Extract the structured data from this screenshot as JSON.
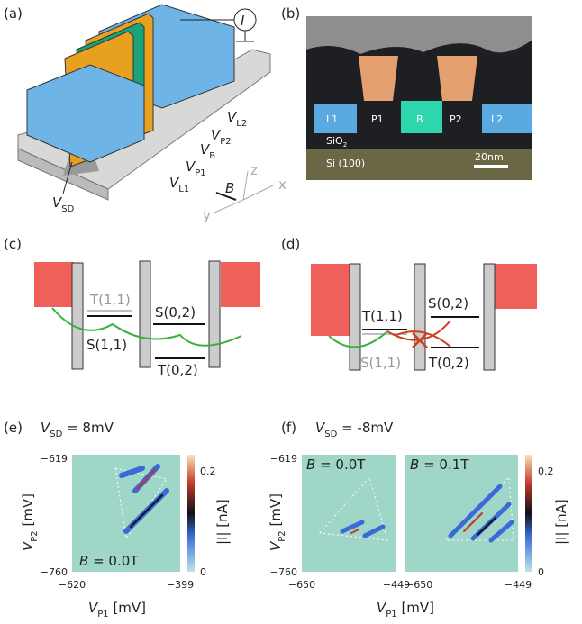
{
  "panel_a": {
    "label": "(a)",
    "current": "I",
    "gates": [
      {
        "symbol": "V",
        "sub": "L2"
      },
      {
        "symbol": "V",
        "sub": "P2"
      },
      {
        "symbol": "V",
        "sub": "B"
      },
      {
        "symbol": "V",
        "sub": "P1"
      },
      {
        "symbol": "V",
        "sub": "L1"
      }
    ],
    "source": {
      "symbol": "V",
      "sub": "SD"
    },
    "field": "B",
    "axes": [
      "z",
      "x",
      "y"
    ]
  },
  "panel_b": {
    "label": "(b)",
    "regions": [
      "L1",
      "P1",
      "B",
      "P2",
      "L2"
    ],
    "oxide": {
      "text": "SiO",
      "sub": "2"
    },
    "substrate": "Si (100)",
    "scale_bar": "20nm"
  },
  "panel_c": {
    "label": "(c)",
    "states": [
      "T(1,1)",
      "S(0,2)",
      "S(1,1)",
      "T(0,2)"
    ]
  },
  "panel_d": {
    "label": "(d)",
    "states": [
      "T(1,1)",
      "S(0,2)",
      "S(1,1)",
      "T(0,2)"
    ]
  },
  "panel_e": {
    "label": "(e)",
    "title": {
      "symbol": "V",
      "sub": "SD",
      "text": " = 8mV"
    },
    "y_label": {
      "symbol": "V",
      "sub": "P2",
      "unit": " [mV]"
    },
    "x_label": {
      "symbol": "V",
      "sub": "P1",
      "unit": " [mV]"
    },
    "yticks": [
      "−619",
      "−760"
    ],
    "xticks": [
      "−620",
      "−399"
    ],
    "field": {
      "symbol": "B",
      "text": " = 0.0T"
    },
    "colorbar": {
      "ticks": [
        "0.2",
        "0"
      ],
      "label": "|I| [nA]"
    }
  },
  "panel_f": {
    "label": "(f)",
    "title": {
      "symbol": "V",
      "sub": "SD",
      "text": " = -8mV"
    },
    "y_label": {
      "symbol": "V",
      "sub": "P2",
      "unit": " [mV]"
    },
    "x_label": {
      "symbol": "V",
      "sub": "P1",
      "unit": " [mV]"
    },
    "yticks": [
      "−619",
      "−760"
    ],
    "maps": [
      {
        "field": {
          "symbol": "B",
          "text": " = 0.0T"
        },
        "xticks": [
          "−650",
          "−449"
        ]
      },
      {
        "field": {
          "symbol": "B",
          "text": " = 0.1T"
        },
        "xticks": [
          "−650",
          "−449"
        ]
      }
    ],
    "colorbar": {
      "ticks": [
        "0.2",
        "0"
      ],
      "label": "|I| [nA]"
    }
  }
}
